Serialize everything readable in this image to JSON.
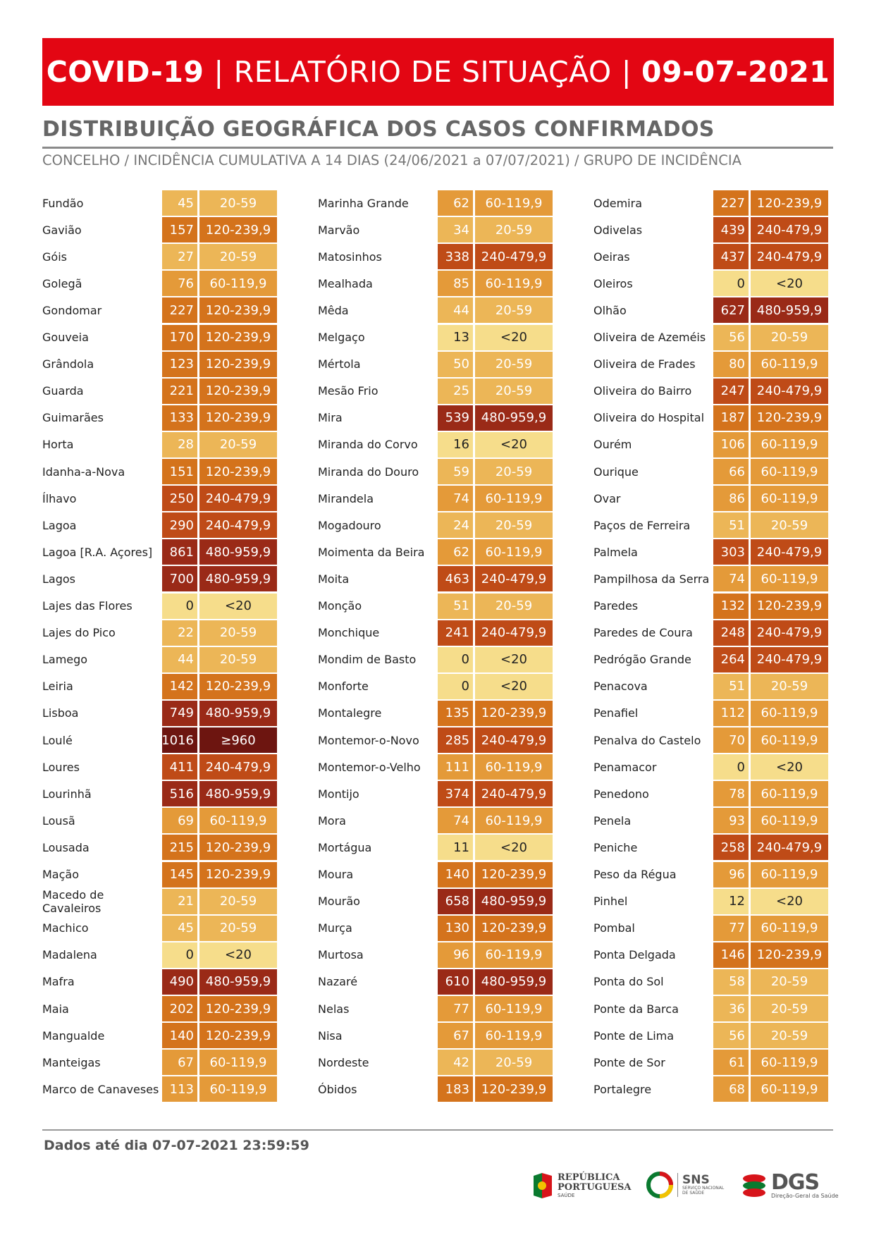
{
  "header": {
    "part1": "COVID-19",
    "separator": "|",
    "part2": "RELATÓRIO DE SITUAÇÃO",
    "date": "09-07-2021"
  },
  "section_title": "DISTRIBUIÇÃO GEOGRÁFICA DOS CASOS CONFIRMADOS",
  "subtitle": "CONCELHO / INCIDÊNCIA CUMULATIVA A 14 DIAS (24/06/2021 a 07/07/2021) / GRUPO DE INCIDÊNCIA",
  "group_colors": {
    "<20": "#f6dd8b",
    "20-59": "#ecb657",
    "60-119,9": "#e49a39",
    "120-239,9": "#d4731c",
    "240-479,9": "#bf4b17",
    "480-959,9": "#9a2a17",
    "≥960": "#6d1510"
  },
  "columns": [
    [
      {
        "name": "Fundão",
        "value": "45",
        "group": "20-59"
      },
      {
        "name": "Gavião",
        "value": "157",
        "group": "120-239,9"
      },
      {
        "name": "Góis",
        "value": "27",
        "group": "20-59"
      },
      {
        "name": "Golegã",
        "value": "76",
        "group": "60-119,9"
      },
      {
        "name": "Gondomar",
        "value": "227",
        "group": "120-239,9"
      },
      {
        "name": "Gouveia",
        "value": "170",
        "group": "120-239,9"
      },
      {
        "name": "Grândola",
        "value": "123",
        "group": "120-239,9"
      },
      {
        "name": "Guarda",
        "value": "221",
        "group": "120-239,9"
      },
      {
        "name": "Guimarães",
        "value": "133",
        "group": "120-239,9"
      },
      {
        "name": "Horta",
        "value": "28",
        "group": "20-59"
      },
      {
        "name": "Idanha-a-Nova",
        "value": "151",
        "group": "120-239,9"
      },
      {
        "name": "Ílhavo",
        "value": "250",
        "group": "240-479,9"
      },
      {
        "name": "Lagoa",
        "value": "290",
        "group": "240-479,9"
      },
      {
        "name": "Lagoa [R.A. Açores]",
        "value": "861",
        "group": "480-959,9"
      },
      {
        "name": "Lagos",
        "value": "700",
        "group": "480-959,9"
      },
      {
        "name": "Lajes das Flores",
        "value": "0",
        "group": "<20"
      },
      {
        "name": "Lajes do Pico",
        "value": "22",
        "group": "20-59"
      },
      {
        "name": "Lamego",
        "value": "44",
        "group": "20-59"
      },
      {
        "name": "Leiria",
        "value": "142",
        "group": "120-239,9"
      },
      {
        "name": "Lisboa",
        "value": "749",
        "group": "480-959,9"
      },
      {
        "name": "Loulé",
        "value": "1016",
        "group": "≥960"
      },
      {
        "name": "Loures",
        "value": "411",
        "group": "240-479,9"
      },
      {
        "name": "Lourinhã",
        "value": "516",
        "group": "480-959,9"
      },
      {
        "name": "Lousã",
        "value": "69",
        "group": "60-119,9"
      },
      {
        "name": "Lousada",
        "value": "215",
        "group": "120-239,9"
      },
      {
        "name": "Mação",
        "value": "145",
        "group": "120-239,9"
      },
      {
        "name": "Macedo de Cavaleiros",
        "value": "21",
        "group": "20-59"
      },
      {
        "name": "Machico",
        "value": "45",
        "group": "20-59"
      },
      {
        "name": "Madalena",
        "value": "0",
        "group": "<20"
      },
      {
        "name": "Mafra",
        "value": "490",
        "group": "480-959,9"
      },
      {
        "name": "Maia",
        "value": "202",
        "group": "120-239,9"
      },
      {
        "name": "Mangualde",
        "value": "140",
        "group": "120-239,9"
      },
      {
        "name": "Manteigas",
        "value": "67",
        "group": "60-119,9"
      },
      {
        "name": "Marco de Canaveses",
        "value": "113",
        "group": "60-119,9"
      }
    ],
    [
      {
        "name": "Marinha Grande",
        "value": "62",
        "group": "60-119,9"
      },
      {
        "name": "Marvão",
        "value": "34",
        "group": "20-59"
      },
      {
        "name": "Matosinhos",
        "value": "338",
        "group": "240-479,9"
      },
      {
        "name": "Mealhada",
        "value": "85",
        "group": "60-119,9"
      },
      {
        "name": "Mêda",
        "value": "44",
        "group": "20-59"
      },
      {
        "name": "Melgaço",
        "value": "13",
        "group": "<20"
      },
      {
        "name": "Mértola",
        "value": "50",
        "group": "20-59"
      },
      {
        "name": "Mesão Frio",
        "value": "25",
        "group": "20-59"
      },
      {
        "name": "Mira",
        "value": "539",
        "group": "480-959,9"
      },
      {
        "name": "Miranda do Corvo",
        "value": "16",
        "group": "<20"
      },
      {
        "name": "Miranda do Douro",
        "value": "59",
        "group": "20-59"
      },
      {
        "name": "Mirandela",
        "value": "74",
        "group": "60-119,9"
      },
      {
        "name": "Mogadouro",
        "value": "24",
        "group": "20-59"
      },
      {
        "name": "Moimenta da Beira",
        "value": "62",
        "group": "60-119,9"
      },
      {
        "name": "Moita",
        "value": "463",
        "group": "240-479,9"
      },
      {
        "name": "Monção",
        "value": "51",
        "group": "20-59"
      },
      {
        "name": "Monchique",
        "value": "241",
        "group": "240-479,9"
      },
      {
        "name": "Mondim de Basto",
        "value": "0",
        "group": "<20"
      },
      {
        "name": "Monforte",
        "value": "0",
        "group": "<20"
      },
      {
        "name": "Montalegre",
        "value": "135",
        "group": "120-239,9"
      },
      {
        "name": "Montemor-o-Novo",
        "value": "285",
        "group": "240-479,9"
      },
      {
        "name": "Montemor-o-Velho",
        "value": "111",
        "group": "60-119,9"
      },
      {
        "name": "Montijo",
        "value": "374",
        "group": "240-479,9"
      },
      {
        "name": "Mora",
        "value": "74",
        "group": "60-119,9"
      },
      {
        "name": "Mortágua",
        "value": "11",
        "group": "<20"
      },
      {
        "name": "Moura",
        "value": "140",
        "group": "120-239,9"
      },
      {
        "name": "Mourão",
        "value": "658",
        "group": "480-959,9"
      },
      {
        "name": "Murça",
        "value": "130",
        "group": "120-239,9"
      },
      {
        "name": "Murtosa",
        "value": "96",
        "group": "60-119,9"
      },
      {
        "name": "Nazaré",
        "value": "610",
        "group": "480-959,9"
      },
      {
        "name": "Nelas",
        "value": "77",
        "group": "60-119,9"
      },
      {
        "name": "Nisa",
        "value": "67",
        "group": "60-119,9"
      },
      {
        "name": "Nordeste",
        "value": "42",
        "group": "20-59"
      },
      {
        "name": "Óbidos",
        "value": "183",
        "group": "120-239,9"
      }
    ],
    [
      {
        "name": "Odemira",
        "value": "227",
        "group": "120-239,9"
      },
      {
        "name": "Odivelas",
        "value": "439",
        "group": "240-479,9"
      },
      {
        "name": "Oeiras",
        "value": "437",
        "group": "240-479,9"
      },
      {
        "name": "Oleiros",
        "value": "0",
        "group": "<20"
      },
      {
        "name": "Olhão",
        "value": "627",
        "group": "480-959,9"
      },
      {
        "name": "Oliveira de Azeméis",
        "value": "56",
        "group": "20-59"
      },
      {
        "name": "Oliveira de Frades",
        "value": "80",
        "group": "60-119,9"
      },
      {
        "name": "Oliveira do Bairro",
        "value": "247",
        "group": "240-479,9"
      },
      {
        "name": "Oliveira do Hospital",
        "value": "187",
        "group": "120-239,9"
      },
      {
        "name": "Ourém",
        "value": "106",
        "group": "60-119,9"
      },
      {
        "name": "Ourique",
        "value": "66",
        "group": "60-119,9"
      },
      {
        "name": "Ovar",
        "value": "86",
        "group": "60-119,9"
      },
      {
        "name": "Paços de Ferreira",
        "value": "51",
        "group": "20-59"
      },
      {
        "name": "Palmela",
        "value": "303",
        "group": "240-479,9"
      },
      {
        "name": "Pampilhosa da Serra",
        "value": "74",
        "group": "60-119,9"
      },
      {
        "name": "Paredes",
        "value": "132",
        "group": "120-239,9"
      },
      {
        "name": "Paredes de Coura",
        "value": "248",
        "group": "240-479,9"
      },
      {
        "name": "Pedrógão Grande",
        "value": "264",
        "group": "240-479,9"
      },
      {
        "name": "Penacova",
        "value": "51",
        "group": "20-59"
      },
      {
        "name": "Penafiel",
        "value": "112",
        "group": "60-119,9"
      },
      {
        "name": "Penalva do Castelo",
        "value": "70",
        "group": "60-119,9"
      },
      {
        "name": "Penamacor",
        "value": "0",
        "group": "<20"
      },
      {
        "name": "Penedono",
        "value": "78",
        "group": "60-119,9"
      },
      {
        "name": "Penela",
        "value": "93",
        "group": "60-119,9"
      },
      {
        "name": "Peniche",
        "value": "258",
        "group": "240-479,9"
      },
      {
        "name": "Peso da Régua",
        "value": "96",
        "group": "60-119,9"
      },
      {
        "name": "Pinhel",
        "value": "12",
        "group": "<20"
      },
      {
        "name": "Pombal",
        "value": "77",
        "group": "60-119,9"
      },
      {
        "name": "Ponta Delgada",
        "value": "146",
        "group": "120-239,9"
      },
      {
        "name": "Ponta do Sol",
        "value": "58",
        "group": "20-59"
      },
      {
        "name": "Ponte da Barca",
        "value": "36",
        "group": "20-59"
      },
      {
        "name": "Ponte de Lima",
        "value": "56",
        "group": "20-59"
      },
      {
        "name": "Ponte de Sor",
        "value": "61",
        "group": "60-119,9"
      },
      {
        "name": "Portalegre",
        "value": "68",
        "group": "60-119,9"
      }
    ]
  ],
  "footer": {
    "text": "Dados até dia 07-07-2021 23:59:59"
  },
  "logos": {
    "republica_line1": "REPÚBLICA",
    "republica_line2": "PORTUGUESA",
    "republica_sub": "SAÚDE",
    "sns_title": "SNS",
    "sns_sub1": "SERVIÇO NACIONAL",
    "sns_sub2": "DE SAÚDE",
    "dgs_title": "DGS",
    "dgs_sub": "Direção-Geral da Saúde"
  }
}
